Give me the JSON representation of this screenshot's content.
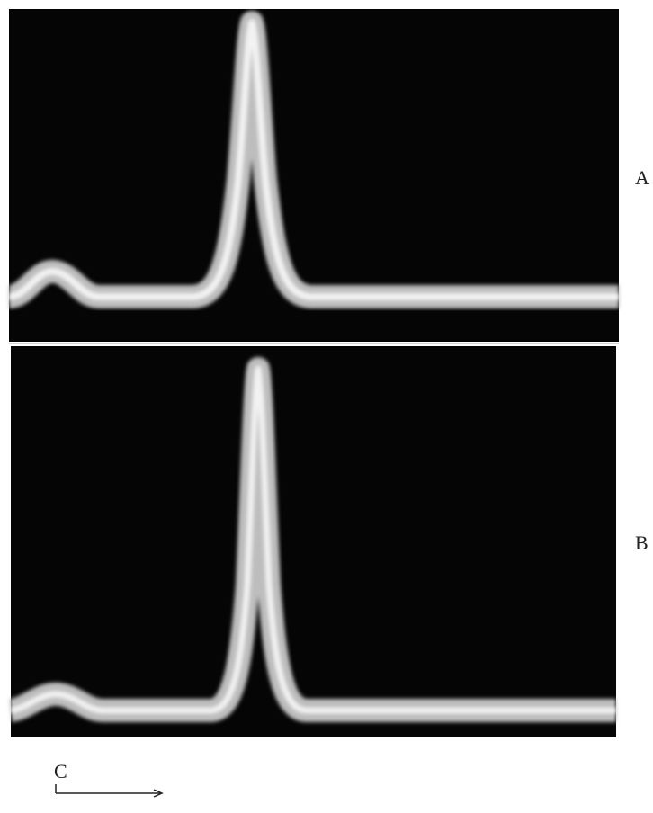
{
  "labels": {
    "panel_a": "A",
    "panel_b": "B",
    "axis": "C"
  }
}
